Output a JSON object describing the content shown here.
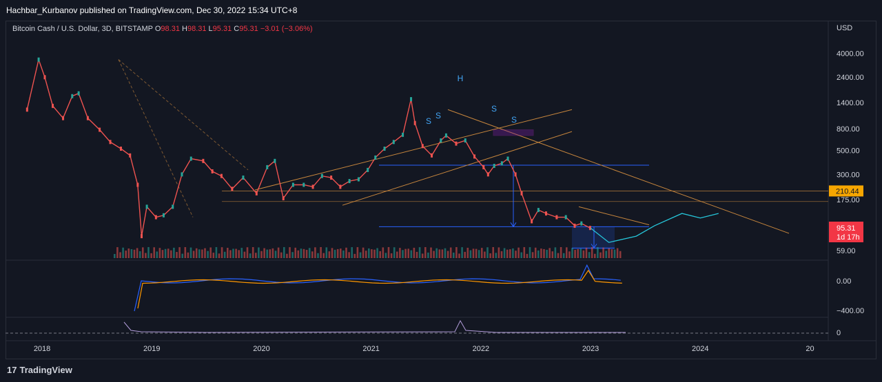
{
  "header": {
    "published": "Hachbar_Kurbanov published on TradingView.com, Dec 30, 2022 15:34 UTC+8"
  },
  "legend": {
    "symbol": "Bitcoin Cash / U.S. Dollar, 3D, BITSTAMP",
    "o_label": "O",
    "o": "98.31",
    "h_label": "H",
    "h": "98.31",
    "l_label": "L",
    "l": "95.31",
    "c_label": "C",
    "c": "95.31",
    "change": "−3.01 (−3.06%)"
  },
  "footer": {
    "brand": "TradingView",
    "logo_icon": "tradingview-logo-icon"
  },
  "colors": {
    "up": "#26a69a",
    "down": "#ef5350",
    "blue": "#2962ff",
    "orange": "#c7863d",
    "cyan": "#26c6da",
    "label_orange": "#f7a600",
    "label_red": "#f23645"
  },
  "chart_data": {
    "type": "line",
    "title": "Bitcoin Cash / U.S. Dollar, 3D, BITSTAMP",
    "currency": "USD",
    "scale": "log",
    "ylim": [
      50,
      6000
    ],
    "xlim": [
      "2017-09",
      "2025-03"
    ],
    "x_ticks": [
      "2018",
      "2019",
      "2020",
      "2021",
      "2022",
      "2023",
      "2024",
      "20"
    ],
    "y_ticks": [
      "4000.00",
      "2400.00",
      "1400.00",
      "800.00",
      "500.00",
      "300.00",
      "175.00",
      "59.00"
    ],
    "price_labels": {
      "level": "210.44",
      "last": "95.31",
      "countdown": "1d 17h"
    },
    "series": [
      {
        "x": [
          "2017-11-12",
          "2017-12-20",
          "2018-01-10",
          "2018-02-06",
          "2018-03-10",
          "2018-04-10",
          "2018-05-01",
          "2018-06-01",
          "2018-07-10",
          "2018-08-15",
          "2018-09-20",
          "2018-10-20",
          "2018-11-15",
          "2018-11-28",
          "2018-12-15",
          "2019-01-15",
          "2019-02-10",
          "2019-03-10",
          "2019-04-10",
          "2019-05-10",
          "2019-06-20",
          "2019-07-20",
          "2019-08-20",
          "2019-09-25",
          "2019-11-01",
          "2019-12-15",
          "2020-01-20",
          "2020-02-15",
          "2020-03-13",
          "2020-04-15",
          "2020-05-20",
          "2020-06-20",
          "2020-07-20",
          "2020-08-20",
          "2020-09-20",
          "2020-10-20",
          "2020-11-20",
          "2020-12-20",
          "2021-01-15",
          "2021-02-15",
          "2021-03-15",
          "2021-04-15",
          "2021-05-12",
          "2021-05-25",
          "2021-06-20",
          "2021-07-20",
          "2021-08-20",
          "2021-09-07",
          "2021-10-10",
          "2021-11-10",
          "2021-12-10",
          "2022-01-10",
          "2022-01-25",
          "2022-02-15",
          "2022-03-10",
          "2022-03-30",
          "2022-04-25",
          "2022-05-15",
          "2022-06-18",
          "2022-07-10",
          "2022-08-05",
          "2022-09-10",
          "2022-10-10",
          "2022-11-09",
          "2022-12-01",
          "2022-12-30"
        ],
        "y": [
          1200,
          3500,
          2400,
          1300,
          1000,
          1600,
          1700,
          1000,
          780,
          600,
          520,
          450,
          240,
          80,
          150,
          120,
          125,
          150,
          300,
          420,
          400,
          320,
          290,
          220,
          280,
          200,
          350,
          400,
          180,
          240,
          240,
          230,
          290,
          280,
          230,
          260,
          270,
          330,
          430,
          520,
          600,
          700,
          1500,
          900,
          550,
          450,
          620,
          690,
          580,
          620,
          440,
          350,
          300,
          360,
          380,
          420,
          300,
          200,
          110,
          140,
          130,
          120,
          120,
          100,
          105,
          95.31
        ]
      },
      {
        "name": "projection",
        "x": [
          "2023-01",
          "2023-03",
          "2023-06",
          "2023-08",
          "2023-11",
          "2024-01",
          "2024-03"
        ],
        "y": [
          95,
          70,
          80,
          100,
          130,
          118,
          130
        ]
      }
    ],
    "indicators": {
      "macd_ticks": [
        "0.00",
        "−400.00"
      ],
      "rsi_ticks": [
        "0"
      ]
    },
    "annotations": {
      "labels": [
        "H",
        "S",
        "S",
        "S",
        "S"
      ]
    }
  }
}
